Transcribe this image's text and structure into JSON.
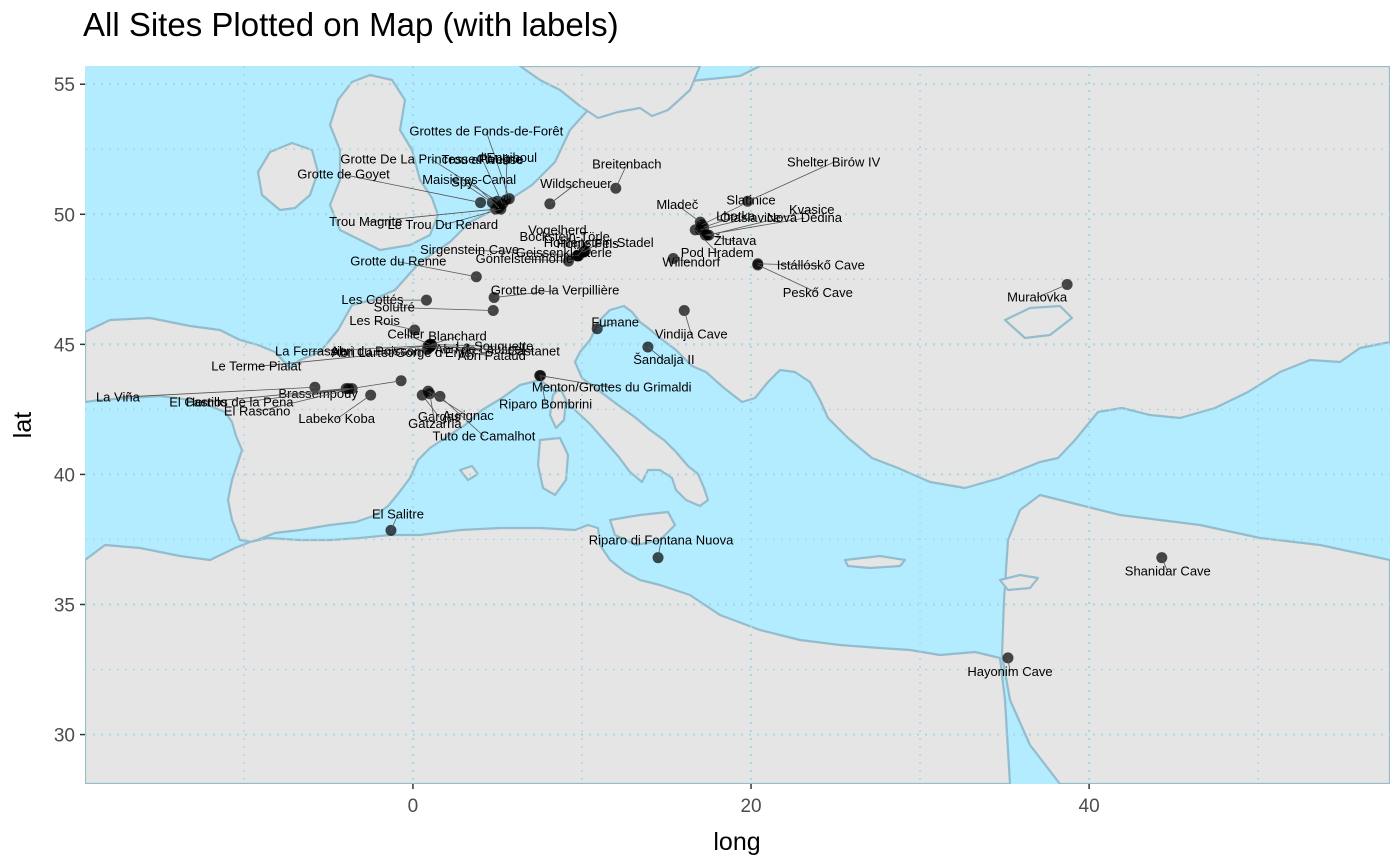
{
  "chart_data": {
    "type": "scatter",
    "title": "All Sites Plotted on Map (with labels)",
    "xlabel": "long",
    "ylabel": "lat",
    "xlim": [
      -19.4,
      57.8
    ],
    "ylim": [
      28.1,
      55.7
    ],
    "xticks": [
      0,
      20,
      40
    ],
    "yticks": [
      30,
      35,
      40,
      45,
      50,
      55
    ],
    "grid": true,
    "colors": {
      "land": "#e5e5e5",
      "sea": "#b3ebff",
      "border": "#93bccc",
      "point": "#000000",
      "grid": "#a9d7e3"
    },
    "points": [
      {
        "name": "Trou al'Wesse",
        "long": 5.3,
        "lat": 50.4
      },
      {
        "name": "Grottes de Fonds-de-Forêt",
        "long": 5.7,
        "lat": 50.6
      },
      {
        "name": "Grotte De La Princesse Pauline",
        "long": 5.0,
        "lat": 50.5
      },
      {
        "name": "d'Engihoul",
        "long": 5.5,
        "lat": 50.55
      },
      {
        "name": "Breitenbach",
        "long": 12.0,
        "lat": 51.0
      },
      {
        "name": "Slatinice",
        "long": 17.1,
        "lat": 49.6
      },
      {
        "name": "Shelter Birów IV",
        "long": 19.8,
        "lat": 50.5
      },
      {
        "name": "Grotte de Goyet",
        "long": 4.0,
        "lat": 50.45
      },
      {
        "name": "Maisières-Canal",
        "long": 5.1,
        "lat": 50.25
      },
      {
        "name": "Spy",
        "long": 4.7,
        "lat": 50.45
      },
      {
        "name": "Wildscheuer",
        "long": 8.1,
        "lat": 50.4
      },
      {
        "name": "Mladeč",
        "long": 17.0,
        "lat": 49.7
      },
      {
        "name": "Lhotka",
        "long": 17.2,
        "lat": 49.5
      },
      {
        "name": "Trou Magrite",
        "long": 4.9,
        "lat": 50.2
      },
      {
        "name": "Le Trou Du Renard",
        "long": 5.2,
        "lat": 50.2
      },
      {
        "name": "Bockstein-Törle",
        "long": 10.1,
        "lat": 48.55
      },
      {
        "name": "Vogelherd",
        "long": 10.2,
        "lat": 48.6
      },
      {
        "name": "Otaslavice",
        "long": 17.0,
        "lat": 49.4
      },
      {
        "name": "Kvasice",
        "long": 17.5,
        "lat": 49.2
      },
      {
        "name": "Sirgenstein Cave",
        "long": 9.8,
        "lat": 48.4
      },
      {
        "name": "Geissenklösterle",
        "long": 9.7,
        "lat": 48.4
      },
      {
        "name": "Hohlenstein-Stadel",
        "long": 10.1,
        "lat": 48.55
      },
      {
        "name": "Žlutava",
        "long": 17.4,
        "lat": 49.2
      },
      {
        "name": "Nová Dědina",
        "long": 17.3,
        "lat": 49.2
      },
      {
        "name": "Solutré",
        "long": 4.75,
        "lat": 46.3
      },
      {
        "name": "Grotte du Renne",
        "long": 3.75,
        "lat": 47.6
      },
      {
        "name": "Gönfelsteinhöhle",
        "long": 9.2,
        "lat": 48.2
      },
      {
        "name": "Hohle Fels",
        "long": 9.75,
        "lat": 48.4
      },
      {
        "name": "Willendorf",
        "long": 15.4,
        "lat": 48.3
      },
      {
        "name": "Istállóskő Cave",
        "long": 20.4,
        "lat": 48.1
      },
      {
        "name": "Les Cottés",
        "long": 0.8,
        "lat": 46.7
      },
      {
        "name": "Grotte de la Verpillière",
        "long": 4.8,
        "lat": 46.8
      },
      {
        "name": "Fumane",
        "long": 10.9,
        "lat": 45.6
      },
      {
        "name": "Pod Hradem",
        "long": 16.7,
        "lat": 49.4
      },
      {
        "name": "Peskő Cave",
        "long": 20.4,
        "lat": 48.05
      },
      {
        "name": "Muralovka",
        "long": 38.7,
        "lat": 47.3
      },
      {
        "name": "Cellier",
        "long": 1.0,
        "lat": 45.0
      },
      {
        "name": "Les Rois",
        "long": 0.1,
        "lat": 45.55
      },
      {
        "name": "Blanchard",
        "long": 1.1,
        "lat": 45.0
      },
      {
        "name": "La Souquette",
        "long": 1.05,
        "lat": 45.0
      },
      {
        "name": "Vindija Cave",
        "long": 16.05,
        "lat": 46.3
      },
      {
        "name": "La Ferrassie",
        "long": 0.9,
        "lat": 44.95
      },
      {
        "name": "Abri du Poisson",
        "long": 1.0,
        "lat": 44.95
      },
      {
        "name": "Abri de Laussel",
        "long": 1.1,
        "lat": 44.95
      },
      {
        "name": "Castanet",
        "long": 1.0,
        "lat": 44.95
      },
      {
        "name": "Šandalja II",
        "long": 13.9,
        "lat": 44.9
      },
      {
        "name": "Le Terme Pialat",
        "long": 0.85,
        "lat": 44.8
      },
      {
        "name": "Brassempouy",
        "long": -0.7,
        "lat": 43.6
      },
      {
        "name": "Abri Lartet/Gorge d'Enfer",
        "long": 1.0,
        "lat": 44.9
      },
      {
        "name": "Abri Pataud",
        "long": 1.0,
        "lat": 44.9
      },
      {
        "name": "Menton/Grottes du Grimaldi",
        "long": 7.5,
        "lat": 43.8
      },
      {
        "name": "La Viña",
        "long": -5.8,
        "lat": 43.35
      },
      {
        "name": "El Castillo",
        "long": -3.95,
        "lat": 43.3
      },
      {
        "name": "Hornos de la Pena",
        "long": -3.8,
        "lat": 43.3
      },
      {
        "name": "Gargas",
        "long": 0.55,
        "lat": 43.05
      },
      {
        "name": "Aurignac",
        "long": 0.9,
        "lat": 43.2
      },
      {
        "name": "Riparo Bombrini",
        "long": 7.55,
        "lat": 43.8
      },
      {
        "name": "El Rascano",
        "long": -3.6,
        "lat": 43.3
      },
      {
        "name": "Labeko Koba",
        "long": -2.5,
        "lat": 43.05
      },
      {
        "name": "Gatzarria",
        "long": 1.0,
        "lat": 43.1
      },
      {
        "name": "Tuto de Camalhot",
        "long": 1.6,
        "lat": 43.0
      },
      {
        "name": "El Salitre",
        "long": -1.3,
        "lat": 37.85
      },
      {
        "name": "Riparo di Fontana Nuova",
        "long": 14.5,
        "lat": 36.8
      },
      {
        "name": "Shanidar Cave",
        "long": 44.3,
        "lat": 36.8
      },
      {
        "name": "Hayonim Cave",
        "long": 35.2,
        "lat": 32.95
      }
    ]
  }
}
